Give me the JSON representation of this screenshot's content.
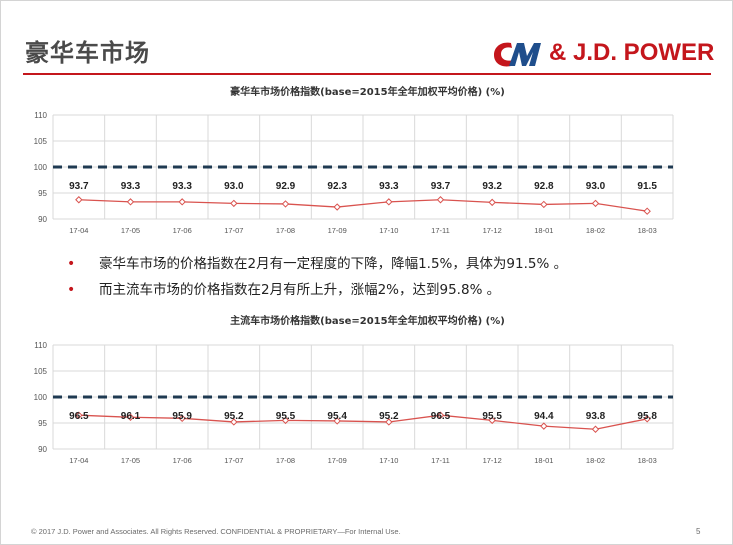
{
  "slide": {
    "title": "豪华车市场",
    "logo": {
      "brand": "& J.D. POWER",
      "colors": {
        "red": "#c4161c",
        "blue": "#1f4e8c"
      }
    },
    "bullets": [
      "豪华车市场的价格指数在2月有一定程度的下降，降幅1.5%，具体为91.5% 。",
      "而主流车市场的价格指数在2月有所上升，涨幅2%，达到95.8% 。"
    ],
    "footer": "© 2017 J.D. Power and Associates. All Rights Reserved. CONFIDENTIAL & PROPRIETARY—For Internal Use.",
    "page_number": "5"
  },
  "chart_data": [
    {
      "type": "line",
      "title": "豪华车市场价格指数(base=2015年全年加权平均价格) (%)",
      "categories": [
        "17-04",
        "17-05",
        "17-06",
        "17-07",
        "17-08",
        "17-09",
        "17-10",
        "17-11",
        "17-12",
        "18-01",
        "18-02",
        "18-03"
      ],
      "values": [
        93.7,
        93.3,
        93.3,
        93.0,
        92.9,
        92.3,
        93.3,
        93.7,
        93.2,
        92.8,
        93.0,
        91.5
      ],
      "labels": [
        "93.7",
        "93.3",
        "93.3",
        "93.0",
        "92.9",
        "92.3",
        "93.3",
        "93.7",
        "93.2",
        "92.8",
        "93.0",
        "91.5"
      ],
      "yticks": [
        "110",
        "105",
        "100",
        "95",
        "90"
      ],
      "ylim": [
        90,
        110
      ],
      "reference_line": 100,
      "grid": true,
      "colors": {
        "line": "#d9534f",
        "reference": "#1f3a52"
      }
    },
    {
      "type": "line",
      "title": "主流车市场价格指数(base=2015年全年加权平均价格) (%)",
      "categories": [
        "17-04",
        "17-05",
        "17-06",
        "17-07",
        "17-08",
        "17-09",
        "17-10",
        "17-11",
        "17-12",
        "18-01",
        "18-02",
        "18-03"
      ],
      "values": [
        96.5,
        96.1,
        95.9,
        95.2,
        95.5,
        95.4,
        95.2,
        96.5,
        95.5,
        94.4,
        93.8,
        95.8
      ],
      "labels": [
        "96.5",
        "96.1",
        "95.9",
        "95.2",
        "95.5",
        "95.4",
        "95.2",
        "96.5",
        "95.5",
        "94.4",
        "93.8",
        "95.8"
      ],
      "yticks": [
        "110",
        "105",
        "100",
        "95",
        "90"
      ],
      "ylim": [
        90,
        110
      ],
      "reference_line": 100,
      "grid": true,
      "colors": {
        "line": "#d9534f",
        "reference": "#1f3a52"
      }
    }
  ]
}
